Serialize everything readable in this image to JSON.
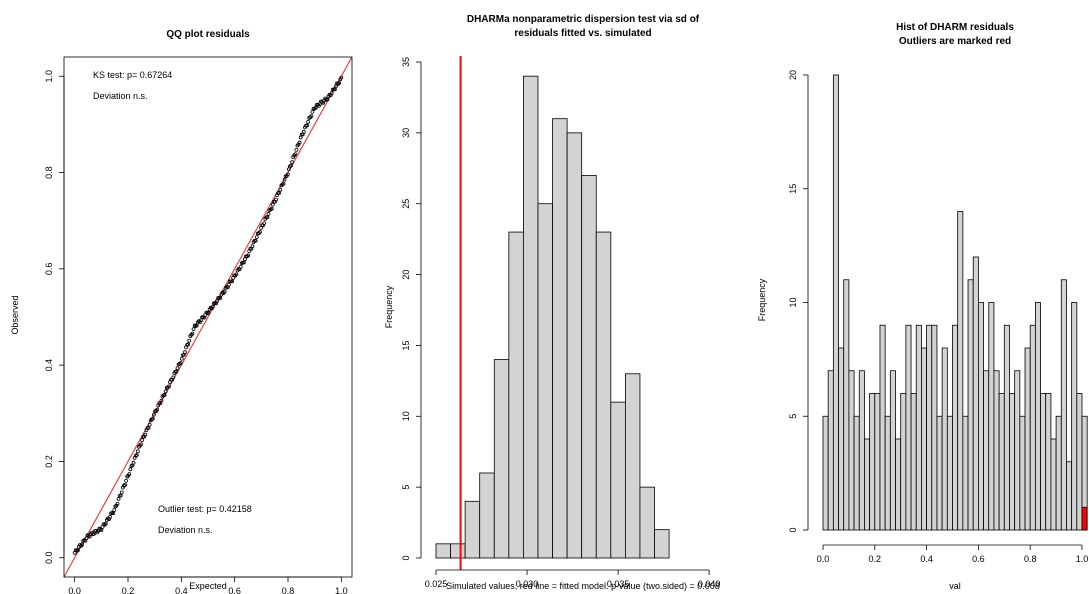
{
  "colors": {
    "points": "#000000",
    "reference_line": "#e8413c",
    "bar_fill": "#d3d3d3",
    "bar_stroke": "#000000",
    "observed_line": "#ff0000",
    "outlier_bar": "#ff0000"
  },
  "chart_data": [
    {
      "type": "scatter",
      "title": "QQ plot residuals",
      "xlabel": "Expected",
      "ylabel": "Observed",
      "xlim": [
        0,
        1
      ],
      "ylim": [
        0,
        1
      ],
      "x_ticks": [
        "0.0",
        "0.2",
        "0.4",
        "0.6",
        "0.8",
        "1.0"
      ],
      "y_ticks": [
        "0.0",
        "0.2",
        "0.4",
        "0.6",
        "0.8",
        "1.0"
      ],
      "reference_line": {
        "from": [
          0,
          0
        ],
        "to": [
          1,
          1
        ]
      },
      "n_points": 250,
      "curve_points": [
        [
          0.0,
          0.01
        ],
        [
          0.05,
          0.045
        ],
        [
          0.1,
          0.06
        ],
        [
          0.15,
          0.1
        ],
        [
          0.2,
          0.17
        ],
        [
          0.25,
          0.24
        ],
        [
          0.3,
          0.3
        ],
        [
          0.35,
          0.355
        ],
        [
          0.4,
          0.41
        ],
        [
          0.45,
          0.48
        ],
        [
          0.5,
          0.51
        ],
        [
          0.55,
          0.545
        ],
        [
          0.6,
          0.585
        ],
        [
          0.65,
          0.63
        ],
        [
          0.7,
          0.685
        ],
        [
          0.75,
          0.74
        ],
        [
          0.8,
          0.8
        ],
        [
          0.85,
          0.875
        ],
        [
          0.9,
          0.935
        ],
        [
          0.95,
          0.955
        ],
        [
          1.0,
          0.995
        ]
      ],
      "annotations": {
        "ks_test": "KS test: p= 0.67264",
        "ks_deviation": "Deviation  n.s.",
        "outlier_test": "Outlier test: p= 0.42158",
        "outlier_deviation": "Deviation  n.s."
      }
    },
    {
      "type": "bar",
      "title": "DHARMa nonparametric dispersion test via sd of\nresiduals fitted vs. simulated",
      "xlabel": "Simulated values, red line = fitted model. p-value (two.sided) = 0.008",
      "ylabel": "Frequency",
      "xlim": [
        0.025,
        0.0412
      ],
      "ylim": [
        0,
        35
      ],
      "x_ticks": [
        "0.025",
        "0.030",
        "0.035",
        "0.040"
      ],
      "y_ticks": [
        "0",
        "5",
        "10",
        "15",
        "20",
        "25",
        "30",
        "35"
      ],
      "bin_start": 0.025,
      "bin_width": 0.0008,
      "values": [
        1,
        1,
        4,
        6,
        14,
        23,
        34,
        25,
        31,
        30,
        27,
        23,
        11,
        13,
        5,
        2
      ],
      "observed_value": 0.02635
    },
    {
      "type": "bar",
      "title": "Hist of DHARM residuals\nOutliers are marked red",
      "xlabel": "val",
      "ylabel": "Frequency",
      "xlim": [
        0,
        1
      ],
      "ylim": [
        0,
        20
      ],
      "x_ticks": [
        "0.0",
        "0.2",
        "0.4",
        "0.6",
        "0.8",
        "1.0"
      ],
      "y_ticks": [
        "0",
        "5",
        "10",
        "15",
        "20"
      ],
      "bin_width": 0.02,
      "values": [
        5,
        7,
        20,
        8,
        11,
        7,
        5,
        7,
        4,
        6,
        6,
        9,
        5,
        7,
        4,
        6,
        9,
        6,
        9,
        8,
        9,
        9,
        5,
        8,
        5,
        9,
        14,
        5,
        11,
        12,
        10,
        7,
        10,
        7,
        6,
        9,
        6,
        7,
        5,
        8,
        9,
        10,
        6,
        6,
        4,
        5,
        11,
        3,
        10,
        6,
        5
      ],
      "outlier_bin": {
        "x": 1.0,
        "value": 1
      }
    }
  ]
}
